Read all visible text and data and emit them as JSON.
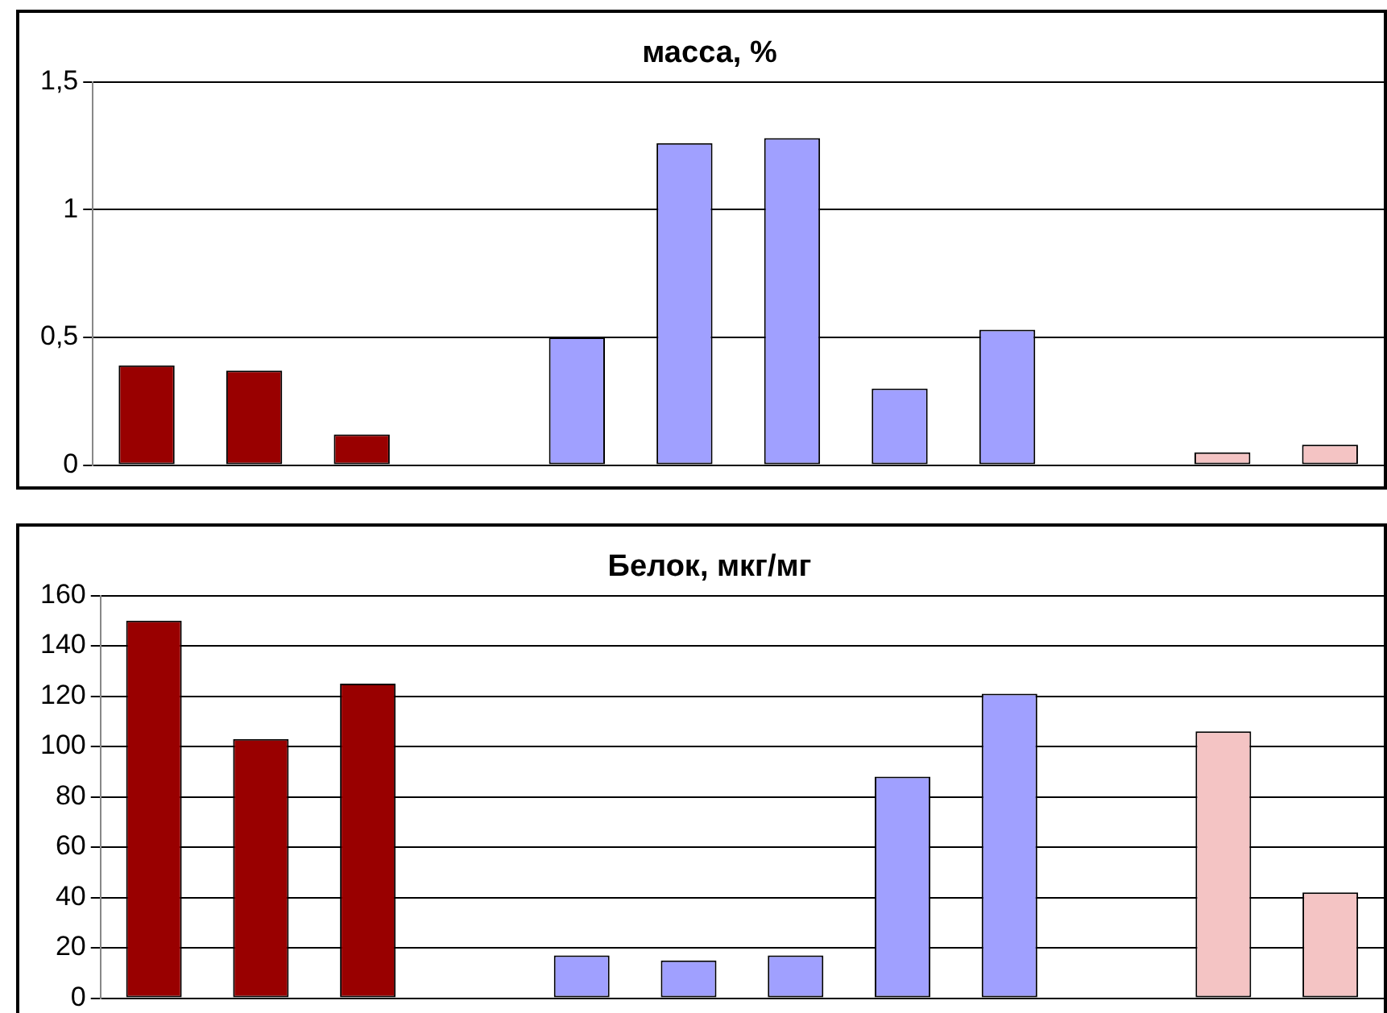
{
  "chart_data": [
    {
      "type": "bar",
      "title": "масса, %",
      "categories": [
        null,
        null,
        null,
        null,
        null,
        null,
        null,
        null,
        null,
        null,
        null,
        null
      ],
      "values": [
        0.39,
        0.37,
        0.12,
        null,
        0.5,
        1.26,
        1.28,
        0.3,
        0.53,
        null,
        0.05,
        0.08
      ],
      "colors": [
        "#990000",
        "#990000",
        "#990000",
        "#990000",
        "#a0a0ff",
        "#a0a0ff",
        "#a0a0ff",
        "#a0a0ff",
        "#a0a0ff",
        "#f4c4c4",
        "#f4c4c4",
        "#f4c4c4"
      ],
      "ylim": [
        0,
        1.5
      ],
      "yticks": [
        0,
        {
          "value": 0.5,
          "label": "0,5"
        },
        1,
        {
          "value": 1.5,
          "label": "1,5"
        }
      ],
      "grid": "y",
      "legend": false,
      "tick_labels": "y"
    },
    {
      "type": "bar",
      "title": "Белок, мкг/мг",
      "categories": [
        null,
        null,
        null,
        null,
        null,
        null,
        null,
        null,
        null,
        null,
        null,
        null
      ],
      "values": [
        150,
        103,
        125,
        null,
        17,
        15,
        17,
        88,
        121,
        null,
        106,
        42
      ],
      "colors": [
        "#990000",
        "#990000",
        "#990000",
        "#990000",
        "#a0a0ff",
        "#a0a0ff",
        "#a0a0ff",
        "#a0a0ff",
        "#a0a0ff",
        "#f4c4c4",
        "#f4c4c4",
        "#f4c4c4"
      ],
      "ylim": [
        0,
        160
      ],
      "yticks": [
        0,
        20,
        40,
        60,
        80,
        100,
        120,
        140,
        160
      ],
      "grid": "y",
      "legend": false,
      "tick_labels": "y"
    }
  ]
}
